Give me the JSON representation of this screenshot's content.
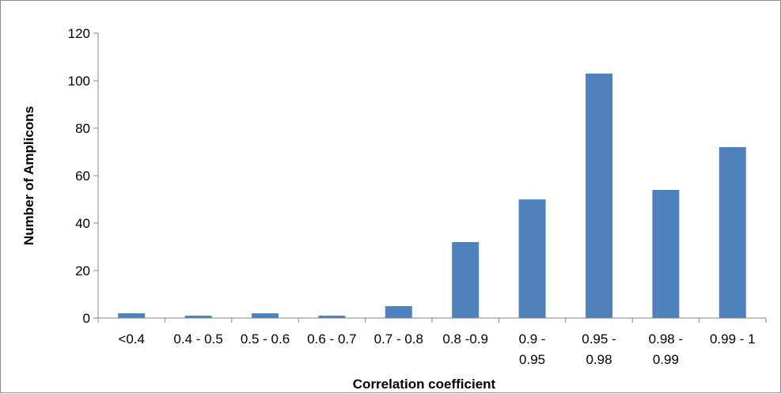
{
  "chart_data": {
    "type": "bar",
    "title": "",
    "xlabel": "Correlation coefficient",
    "ylabel": "Number of Amplicons",
    "categories": [
      [
        "<0.4"
      ],
      [
        "0.4 - 0.5"
      ],
      [
        "0.5 - 0.6"
      ],
      [
        "0.6 - 0.7"
      ],
      [
        "0.7 - 0.8"
      ],
      [
        "0.8 -0.9"
      ],
      [
        "0.9 -",
        "0.95"
      ],
      [
        "0.95 -",
        "0.98"
      ],
      [
        "0.98 -",
        "0.99"
      ],
      [
        "0.99 - 1"
      ]
    ],
    "values": [
      2,
      1,
      2,
      1,
      5,
      32,
      50,
      103,
      54,
      72
    ],
    "ylim": [
      0,
      120
    ],
    "yticks": [
      0,
      20,
      40,
      60,
      80,
      100,
      120
    ],
    "grid": false,
    "legend": "none",
    "bar_color": "#4f81bd"
  }
}
